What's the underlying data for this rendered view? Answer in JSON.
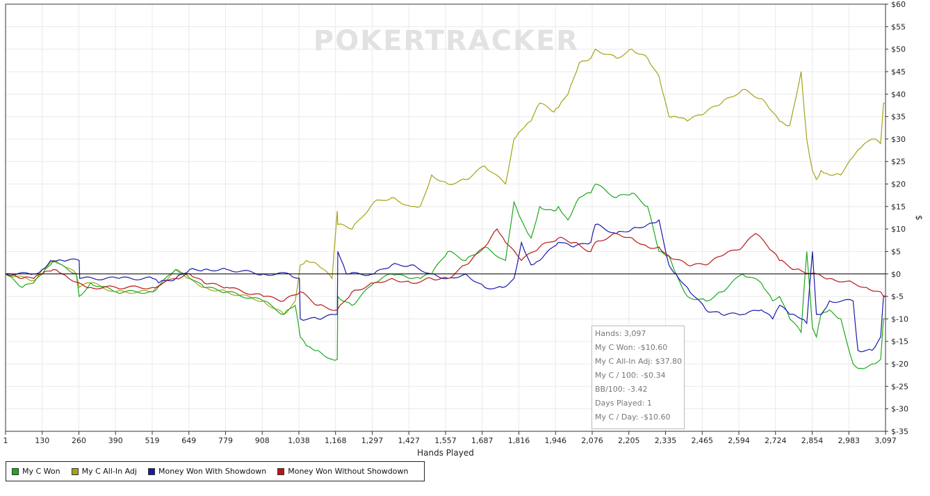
{
  "watermark": "POKERTRACKER",
  "chart_data": {
    "type": "line",
    "xlabel": "Hands Played",
    "ylabel": "$",
    "xlim": [
      1,
      3097
    ],
    "ylim": [
      -35,
      60
    ],
    "grid": true,
    "legend_position": "bottom-left",
    "x_ticks": [
      "1",
      "130",
      "260",
      "390",
      "519",
      "649",
      "779",
      "908",
      "1,038",
      "1,168",
      "1,297",
      "1,427",
      "1,557",
      "1,687",
      "1,816",
      "1,946",
      "2,076",
      "2,205",
      "2,335",
      "2,465",
      "2,594",
      "2,724",
      "2,854",
      "2,983",
      "3,097"
    ],
    "y_ticks": [
      "$60",
      "$55",
      "$50",
      "$45",
      "$40",
      "$35",
      "$30",
      "$25",
      "$20",
      "$15",
      "$10",
      "$5",
      "$0",
      "$-5",
      "$-10",
      "$-15",
      "$-20",
      "$-25",
      "$-30",
      "$-35"
    ],
    "series": [
      {
        "name": "My C All-In Adj",
        "color": "#a3a317",
        "x": [
          1,
          100,
          130,
          170,
          200,
          250,
          260,
          300,
          390,
          519,
          600,
          649,
          700,
          779,
          908,
          980,
          1020,
          1038,
          1060,
          1100,
          1150,
          1168,
          1170,
          1220,
          1297,
          1360,
          1427,
          1460,
          1500,
          1557,
          1620,
          1687,
          1760,
          1790,
          1816,
          1850,
          1880,
          1930,
          1946,
          1980,
          2020,
          2060,
          2076,
          2150,
          2205,
          2260,
          2300,
          2335,
          2360,
          2400,
          2465,
          2520,
          2594,
          2660,
          2700,
          2724,
          2760,
          2800,
          2820,
          2840,
          2854,
          2870,
          2900,
          2940,
          2983,
          3010,
          3050,
          3080,
          3090,
          3097
        ],
        "y": [
          0,
          -1.5,
          1,
          3,
          2,
          0,
          -3,
          -2,
          -4,
          -4,
          1,
          -1,
          -3,
          -4,
          -6,
          -9,
          -6,
          2,
          3,
          2,
          -1,
          14,
          11,
          10,
          16,
          17,
          15,
          15,
          22,
          20,
          21,
          24,
          20,
          30,
          32,
          34,
          38,
          36,
          37,
          40,
          47,
          48,
          50,
          48,
          50,
          48,
          44,
          35,
          35,
          34,
          36,
          38,
          41,
          39,
          36,
          34,
          33,
          45,
          30,
          23,
          21,
          23,
          22,
          22,
          26,
          28,
          30,
          29,
          38,
          38
        ]
      },
      {
        "name": "My C Won",
        "color": "#1ea81e",
        "x": [
          1,
          60,
          100,
          130,
          170,
          200,
          250,
          260,
          300,
          390,
          519,
          600,
          649,
          700,
          779,
          908,
          980,
          1020,
          1038,
          1060,
          1100,
          1150,
          1168,
          1170,
          1220,
          1297,
          1360,
          1427,
          1460,
          1500,
          1557,
          1620,
          1687,
          1760,
          1790,
          1816,
          1850,
          1880,
          1930,
          1946,
          1980,
          2020,
          2060,
          2076,
          2150,
          2205,
          2260,
          2300,
          2335,
          2360,
          2400,
          2465,
          2520,
          2594,
          2660,
          2700,
          2724,
          2760,
          2800,
          2820,
          2840,
          2854,
          2870,
          2900,
          2940,
          2983,
          3010,
          3050,
          3080,
          3090,
          3097
        ],
        "y": [
          0,
          -3,
          -2,
          0,
          3,
          2,
          0,
          -5,
          -2,
          -4,
          -4,
          1,
          -1,
          -3,
          -4,
          -6,
          -9,
          -7,
          -14,
          -16,
          -17,
          -19,
          -19,
          -5,
          -7,
          -2,
          0,
          -1,
          -1,
          0,
          5,
          3,
          6,
          3,
          16,
          12,
          8,
          15,
          14,
          15,
          12,
          17,
          18,
          20,
          17,
          18,
          15,
          5,
          4,
          0,
          -5,
          -6,
          -4,
          0,
          -2,
          -6,
          -5,
          -10,
          -13,
          5,
          -12,
          -14,
          -9,
          -8,
          -10,
          -20,
          -21,
          -20,
          -19,
          -10,
          -10
        ]
      },
      {
        "name": "Money Won With Showdown",
        "color": "#1a1aa8",
        "x": [
          1,
          100,
          130,
          160,
          200,
          260,
          262,
          400,
          519,
          540,
          600,
          649,
          700,
          779,
          908,
          1000,
          1035,
          1038,
          1100,
          1168,
          1170,
          1200,
          1210,
          1297,
          1360,
          1427,
          1500,
          1557,
          1620,
          1687,
          1750,
          1790,
          1816,
          1850,
          1880,
          1946,
          2000,
          2060,
          2076,
          2150,
          2205,
          2260,
          2300,
          2335,
          2360,
          2400,
          2465,
          2520,
          2594,
          2660,
          2700,
          2724,
          2760,
          2800,
          2820,
          2840,
          2854,
          2870,
          2900,
          2983,
          3000,
          3050,
          3080,
          3090,
          3097
        ],
        "y": [
          0,
          0,
          1,
          3,
          3,
          3,
          -1,
          -1,
          -1,
          -2,
          -1,
          1,
          1,
          1,
          0,
          0,
          -1,
          -10,
          -10,
          -9,
          5,
          0,
          0,
          0,
          2,
          2,
          0,
          -1,
          0,
          -3,
          -3,
          -1,
          7,
          2,
          3,
          7,
          6,
          7,
          11,
          9,
          10,
          11,
          12,
          2,
          0,
          -3,
          -8,
          -9,
          -9,
          -8,
          -10,
          -7,
          -9,
          -10,
          -11,
          5,
          -9,
          -9,
          -6,
          -6,
          -17,
          -17,
          -14,
          -5,
          -5
        ]
      },
      {
        "name": "Money Won Without Showdown",
        "color": "#b81616",
        "x": [
          1,
          60,
          100,
          130,
          170,
          200,
          260,
          300,
          390,
          519,
          600,
          649,
          700,
          779,
          908,
          980,
          1038,
          1100,
          1168,
          1220,
          1297,
          1360,
          1427,
          1500,
          1557,
          1620,
          1687,
          1730,
          1760,
          1816,
          1880,
          1946,
          2000,
          2060,
          2076,
          2150,
          2205,
          2260,
          2300,
          2335,
          2400,
          2465,
          2520,
          2594,
          2640,
          2700,
          2724,
          2780,
          2854,
          2900,
          2983,
          3030,
          3080,
          3097
        ],
        "y": [
          0,
          -1,
          -1,
          0,
          1,
          0,
          -2,
          -3,
          -3,
          -3,
          -1,
          0,
          -2,
          -3,
          -5,
          -6,
          -4,
          -7,
          -8,
          -4,
          -2,
          -1,
          -2,
          -1,
          -1,
          2,
          6,
          10,
          7,
          3,
          6,
          8,
          7,
          5,
          7,
          9,
          8,
          6,
          6,
          4,
          2,
          2,
          4,
          6,
          9,
          5,
          3,
          1,
          0,
          -1,
          -2,
          -3,
          -4,
          -5
        ]
      }
    ]
  },
  "tooltip": {
    "lines": [
      "Hands: 3,097",
      "My C Won: -$10.60",
      "My C All-In Adj: $37.80",
      "My C / 100: -$0.34",
      "BB/100: -3.42",
      "Days Played: 1",
      "My C / Day: -$10.60"
    ]
  }
}
